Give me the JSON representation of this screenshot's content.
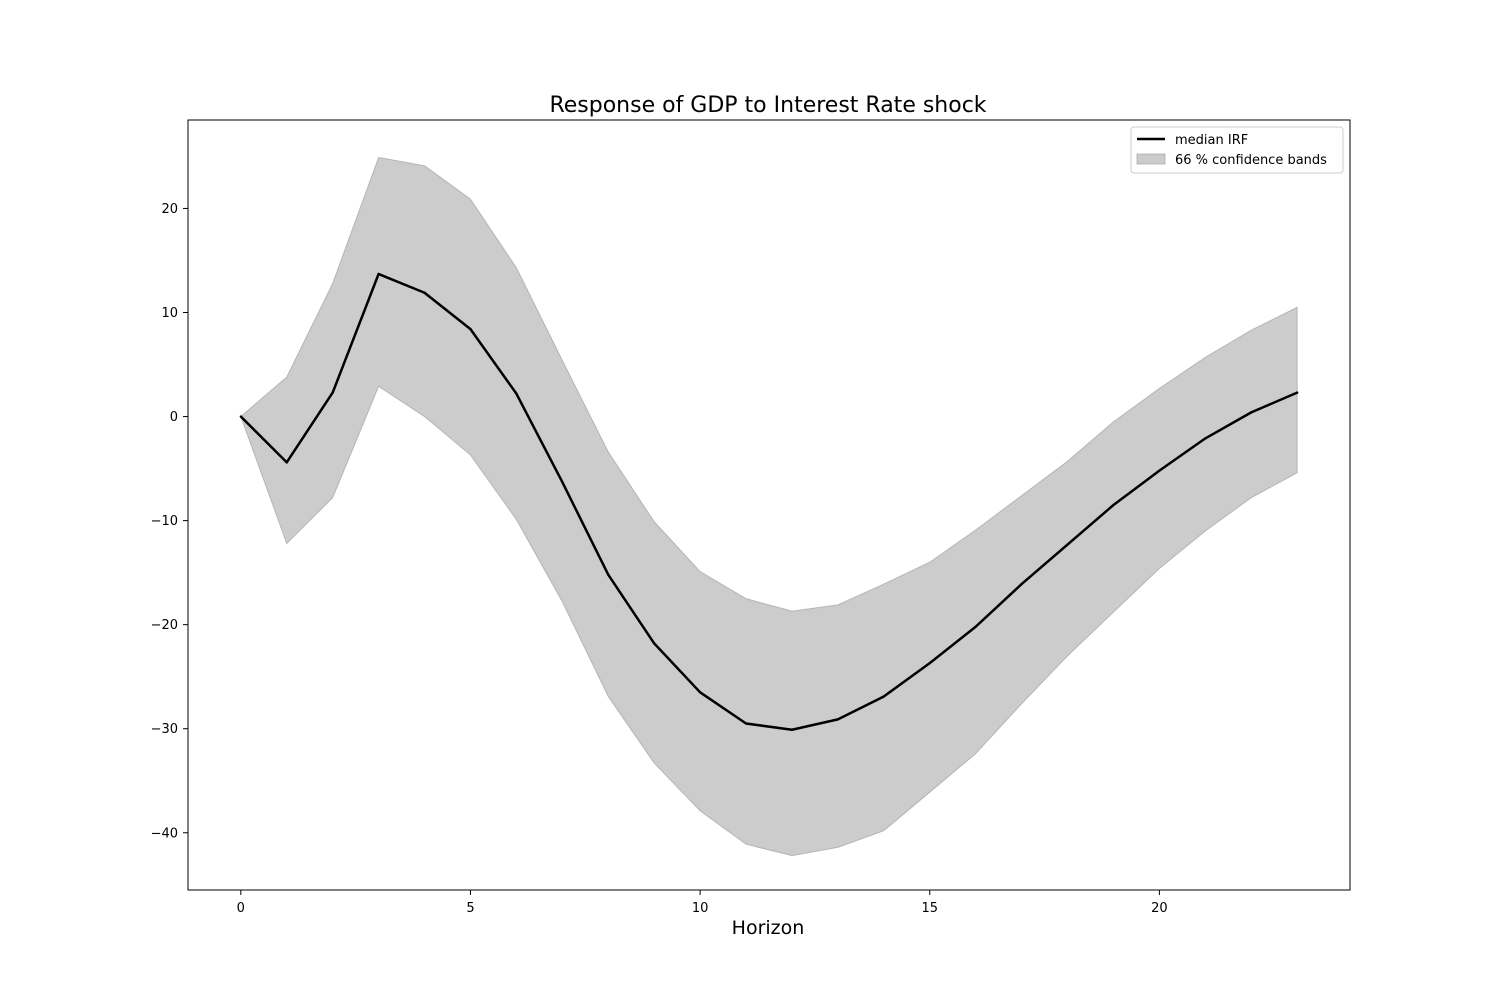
{
  "chart_data": {
    "type": "line",
    "title": "Response of GDP to Interest Rate shock",
    "xlabel": "Horizon",
    "ylabel": "",
    "xlim": [
      -1.15,
      24.15
    ],
    "ylim": [
      -45.5,
      28.5
    ],
    "xticks": [
      0,
      5,
      10,
      15,
      20
    ],
    "yticks": [
      -40,
      -30,
      -20,
      -10,
      0,
      10,
      20
    ],
    "grid": false,
    "legend_position": "top-right",
    "x": [
      0,
      1,
      2,
      3,
      4,
      5,
      6,
      7,
      8,
      9,
      10,
      11,
      12,
      13,
      14,
      15,
      16,
      17,
      18,
      19,
      20,
      21,
      22,
      23
    ],
    "series": [
      {
        "name": "median IRF",
        "kind": "line",
        "color": "#000000",
        "values": [
          0.0,
          -4.4,
          2.3,
          13.7,
          11.9,
          8.4,
          2.2,
          -6.3,
          -15.2,
          -21.8,
          -26.5,
          -29.5,
          -30.1,
          -29.1,
          -26.9,
          -23.7,
          -20.2,
          -16.1,
          -12.3,
          -8.5,
          -5.2,
          -2.1,
          0.4,
          2.3
        ]
      },
      {
        "name": "66 % confidence bands",
        "kind": "band",
        "color": "#cccccc",
        "lower": [
          0.0,
          -12.2,
          -7.8,
          2.9,
          0.0,
          -3.7,
          -9.9,
          -17.8,
          -26.9,
          -33.3,
          -37.9,
          -41.1,
          -42.2,
          -41.4,
          -39.8,
          -36.1,
          -32.4,
          -27.6,
          -23.0,
          -18.8,
          -14.6,
          -11.0,
          -7.8,
          -5.4
        ],
        "upper": [
          0.0,
          3.8,
          12.8,
          24.9,
          24.1,
          20.9,
          14.3,
          5.4,
          -3.4,
          -10.1,
          -14.9,
          -17.5,
          -18.7,
          -18.1,
          -16.1,
          -14.0,
          -10.9,
          -7.6,
          -4.3,
          -0.5,
          2.7,
          5.7,
          8.3,
          10.5
        ]
      }
    ]
  }
}
